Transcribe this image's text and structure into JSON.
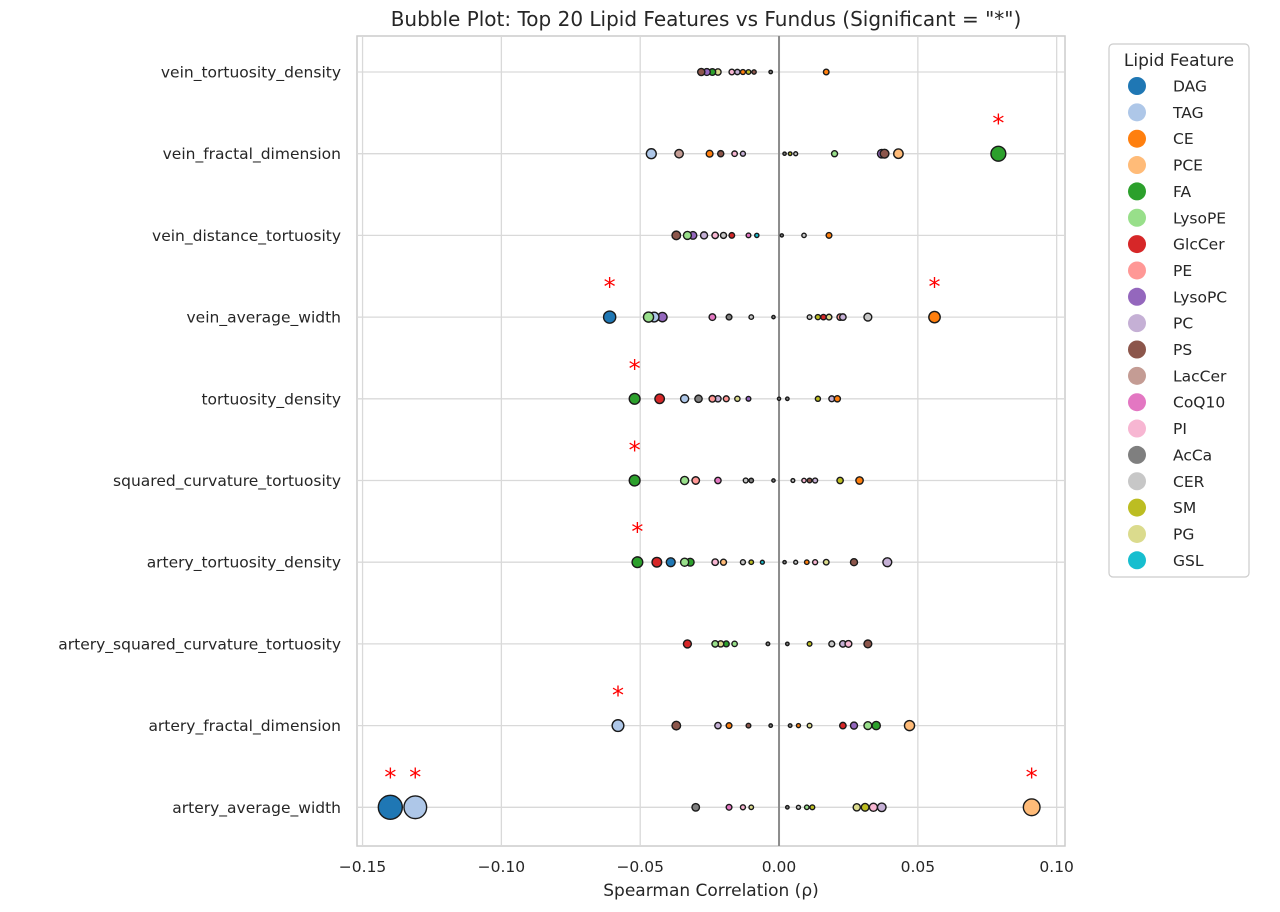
{
  "chart_data": {
    "type": "scatter",
    "title": "Bubble Plot: Top 20 Lipid Features vs Fundus (Significant = \"*\")",
    "xlabel": "Spearman Correlation (ρ)",
    "ylabel": "",
    "xlim": [
      -0.152,
      0.103
    ],
    "xticks": [
      -0.15,
      -0.1,
      -0.05,
      0.0,
      0.05,
      0.1
    ],
    "xtick_labels": [
      "−0.15",
      "−0.10",
      "−0.05",
      "0.00",
      "0.05",
      "0.10"
    ],
    "categories": [
      "vein_tortuosity_density",
      "vein_fractal_dimension",
      "vein_distance_tortuosity",
      "vein_average_width",
      "tortuosity_density",
      "squared_curvature_tortuosity",
      "artery_tortuosity_density",
      "artery_squared_curvature_tortuosity",
      "artery_fractal_dimension",
      "artery_average_width"
    ],
    "significance_marker": "*",
    "grid": true,
    "zero_line": true,
    "legend": {
      "title": "Lipid Feature",
      "placement": "outside-right",
      "items": [
        {
          "name": "DAG",
          "color": "#1f77b4"
        },
        {
          "name": "TAG",
          "color": "#aec7e8"
        },
        {
          "name": "CE",
          "color": "#ff7f0e"
        },
        {
          "name": "PCE",
          "color": "#ffbb78"
        },
        {
          "name": "FA",
          "color": "#2ca02c"
        },
        {
          "name": "LysoPE",
          "color": "#98df8a"
        },
        {
          "name": "GlcCer",
          "color": "#d62728"
        },
        {
          "name": "PE",
          "color": "#ff9896"
        },
        {
          "name": "LysoPC",
          "color": "#9467bd"
        },
        {
          "name": "PC",
          "color": "#c5b0d5"
        },
        {
          "name": "PS",
          "color": "#8c564b"
        },
        {
          "name": "LacCer",
          "color": "#c49c94"
        },
        {
          "name": "CoQ10",
          "color": "#e377c2"
        },
        {
          "name": "PI",
          "color": "#f7b6d2"
        },
        {
          "name": "AcCa",
          "color": "#7f7f7f"
        },
        {
          "name": "CER",
          "color": "#c7c7c7"
        },
        {
          "name": "SM",
          "color": "#bcbd22"
        },
        {
          "name": "PG",
          "color": "#dbdb8d"
        },
        {
          "name": "GSL",
          "color": "#17becf"
        }
      ]
    },
    "points": [
      {
        "row": "vein_tortuosity_density",
        "lipid": "PS",
        "rho": -0.028,
        "sig": false
      },
      {
        "row": "vein_tortuosity_density",
        "lipid": "LysoPC",
        "rho": -0.026,
        "sig": false
      },
      {
        "row": "vein_tortuosity_density",
        "lipid": "FA",
        "rho": -0.024,
        "sig": false
      },
      {
        "row": "vein_tortuosity_density",
        "lipid": "PG",
        "rho": -0.022,
        "sig": false
      },
      {
        "row": "vein_tortuosity_density",
        "lipid": "PI",
        "rho": -0.017,
        "sig": false
      },
      {
        "row": "vein_tortuosity_density",
        "lipid": "PC",
        "rho": -0.015,
        "sig": false
      },
      {
        "row": "vein_tortuosity_density",
        "lipid": "CE",
        "rho": -0.013,
        "sig": false
      },
      {
        "row": "vein_tortuosity_density",
        "lipid": "SM",
        "rho": -0.011,
        "sig": false
      },
      {
        "row": "vein_tortuosity_density",
        "lipid": "PS",
        "rho": -0.009,
        "sig": false
      },
      {
        "row": "vein_tortuosity_density",
        "lipid": "AcCa",
        "rho": -0.003,
        "sig": false
      },
      {
        "row": "vein_tortuosity_density",
        "lipid": "CE",
        "rho": 0.017,
        "sig": false
      },
      {
        "row": "vein_fractal_dimension",
        "lipid": "TAG",
        "rho": -0.046,
        "sig": false
      },
      {
        "row": "vein_fractal_dimension",
        "lipid": "LacCer",
        "rho": -0.036,
        "sig": false
      },
      {
        "row": "vein_fractal_dimension",
        "lipid": "CE",
        "rho": -0.025,
        "sig": false
      },
      {
        "row": "vein_fractal_dimension",
        "lipid": "PS",
        "rho": -0.021,
        "sig": false
      },
      {
        "row": "vein_fractal_dimension",
        "lipid": "PI",
        "rho": -0.016,
        "sig": false
      },
      {
        "row": "vein_fractal_dimension",
        "lipid": "PC",
        "rho": -0.013,
        "sig": false
      },
      {
        "row": "vein_fractal_dimension",
        "lipid": "AcCa",
        "rho": 0.002,
        "sig": false
      },
      {
        "row": "vein_fractal_dimension",
        "lipid": "SM",
        "rho": 0.004,
        "sig": false
      },
      {
        "row": "vein_fractal_dimension",
        "lipid": "CER",
        "rho": 0.006,
        "sig": false
      },
      {
        "row": "vein_fractal_dimension",
        "lipid": "LysoPE",
        "rho": 0.02,
        "sig": false
      },
      {
        "row": "vein_fractal_dimension",
        "lipid": "LysoPC",
        "rho": 0.037,
        "sig": false
      },
      {
        "row": "vein_fractal_dimension",
        "lipid": "PS",
        "rho": 0.038,
        "sig": false
      },
      {
        "row": "vein_fractal_dimension",
        "lipid": "PCE",
        "rho": 0.043,
        "sig": false
      },
      {
        "row": "vein_fractal_dimension",
        "lipid": "FA",
        "rho": 0.079,
        "sig": true
      },
      {
        "row": "vein_distance_tortuosity",
        "lipid": "PS",
        "rho": -0.037,
        "sig": false
      },
      {
        "row": "vein_distance_tortuosity",
        "lipid": "LysoPE",
        "rho": -0.033,
        "sig": false
      },
      {
        "row": "vein_distance_tortuosity",
        "lipid": "LysoPC",
        "rho": -0.031,
        "sig": false
      },
      {
        "row": "vein_distance_tortuosity",
        "lipid": "PC",
        "rho": -0.027,
        "sig": false
      },
      {
        "row": "vein_distance_tortuosity",
        "lipid": "PI",
        "rho": -0.023,
        "sig": false
      },
      {
        "row": "vein_distance_tortuosity",
        "lipid": "CER",
        "rho": -0.02,
        "sig": false
      },
      {
        "row": "vein_distance_tortuosity",
        "lipid": "GlcCer",
        "rho": -0.017,
        "sig": false
      },
      {
        "row": "vein_distance_tortuosity",
        "lipid": "CoQ10",
        "rho": -0.011,
        "sig": false
      },
      {
        "row": "vein_distance_tortuosity",
        "lipid": "GSL",
        "rho": -0.008,
        "sig": false
      },
      {
        "row": "vein_distance_tortuosity",
        "lipid": "AcCa",
        "rho": 0.001,
        "sig": false
      },
      {
        "row": "vein_distance_tortuosity",
        "lipid": "CER",
        "rho": 0.009,
        "sig": false
      },
      {
        "row": "vein_distance_tortuosity",
        "lipid": "CE",
        "rho": 0.018,
        "sig": false
      },
      {
        "row": "vein_average_width",
        "lipid": "DAG",
        "rho": -0.061,
        "sig": true
      },
      {
        "row": "vein_average_width",
        "lipid": "LysoPE",
        "rho": -0.047,
        "sig": false
      },
      {
        "row": "vein_average_width",
        "lipid": "TAG",
        "rho": -0.045,
        "sig": false
      },
      {
        "row": "vein_average_width",
        "lipid": "LysoPC",
        "rho": -0.042,
        "sig": false
      },
      {
        "row": "vein_average_width",
        "lipid": "CoQ10",
        "rho": -0.024,
        "sig": false
      },
      {
        "row": "vein_average_width",
        "lipid": "AcCa",
        "rho": -0.018,
        "sig": false
      },
      {
        "row": "vein_average_width",
        "lipid": "CER",
        "rho": -0.01,
        "sig": false
      },
      {
        "row": "vein_average_width",
        "lipid": "AcCa",
        "rho": -0.002,
        "sig": false
      },
      {
        "row": "vein_average_width",
        "lipid": "CER",
        "rho": 0.011,
        "sig": false
      },
      {
        "row": "vein_average_width",
        "lipid": "SM",
        "rho": 0.014,
        "sig": false
      },
      {
        "row": "vein_average_width",
        "lipid": "GlcCer",
        "rho": 0.016,
        "sig": false
      },
      {
        "row": "vein_average_width",
        "lipid": "PG",
        "rho": 0.018,
        "sig": false
      },
      {
        "row": "vein_average_width",
        "lipid": "PE",
        "rho": 0.022,
        "sig": false
      },
      {
        "row": "vein_average_width",
        "lipid": "PC",
        "rho": 0.023,
        "sig": false
      },
      {
        "row": "vein_average_width",
        "lipid": "CER",
        "rho": 0.032,
        "sig": false
      },
      {
        "row": "vein_average_width",
        "lipid": "CE",
        "rho": 0.056,
        "sig": true
      },
      {
        "row": "tortuosity_density",
        "lipid": "FA",
        "rho": -0.052,
        "sig": true
      },
      {
        "row": "tortuosity_density",
        "lipid": "GlcCer",
        "rho": -0.043,
        "sig": false
      },
      {
        "row": "tortuosity_density",
        "lipid": "TAG",
        "rho": -0.034,
        "sig": false
      },
      {
        "row": "tortuosity_density",
        "lipid": "AcCa",
        "rho": -0.029,
        "sig": false
      },
      {
        "row": "tortuosity_density",
        "lipid": "PE",
        "rho": -0.024,
        "sig": false
      },
      {
        "row": "tortuosity_density",
        "lipid": "PC",
        "rho": -0.022,
        "sig": false
      },
      {
        "row": "tortuosity_density",
        "lipid": "PE",
        "rho": -0.019,
        "sig": false
      },
      {
        "row": "tortuosity_density",
        "lipid": "PG",
        "rho": -0.015,
        "sig": false
      },
      {
        "row": "tortuosity_density",
        "lipid": "LysoPC",
        "rho": -0.011,
        "sig": false
      },
      {
        "row": "tortuosity_density",
        "lipid": "AcCa",
        "rho": 0.0,
        "sig": false
      },
      {
        "row": "tortuosity_density",
        "lipid": "AcCa",
        "rho": 0.003,
        "sig": false
      },
      {
        "row": "tortuosity_density",
        "lipid": "SM",
        "rho": 0.014,
        "sig": false
      },
      {
        "row": "tortuosity_density",
        "lipid": "PC",
        "rho": 0.019,
        "sig": false
      },
      {
        "row": "tortuosity_density",
        "lipid": "CE",
        "rho": 0.021,
        "sig": false
      },
      {
        "row": "squared_curvature_tortuosity",
        "lipid": "FA",
        "rho": -0.052,
        "sig": true
      },
      {
        "row": "squared_curvature_tortuosity",
        "lipid": "LysoPE",
        "rho": -0.034,
        "sig": false
      },
      {
        "row": "squared_curvature_tortuosity",
        "lipid": "PE",
        "rho": -0.03,
        "sig": false
      },
      {
        "row": "squared_curvature_tortuosity",
        "lipid": "CoQ10",
        "rho": -0.022,
        "sig": false
      },
      {
        "row": "squared_curvature_tortuosity",
        "lipid": "CER",
        "rho": -0.012,
        "sig": false
      },
      {
        "row": "squared_curvature_tortuosity",
        "lipid": "AcCa",
        "rho": -0.01,
        "sig": false
      },
      {
        "row": "squared_curvature_tortuosity",
        "lipid": "AcCa",
        "rho": -0.002,
        "sig": false
      },
      {
        "row": "squared_curvature_tortuosity",
        "lipid": "CER",
        "rho": 0.005,
        "sig": false
      },
      {
        "row": "squared_curvature_tortuosity",
        "lipid": "PI",
        "rho": 0.009,
        "sig": false
      },
      {
        "row": "squared_curvature_tortuosity",
        "lipid": "PS",
        "rho": 0.011,
        "sig": false
      },
      {
        "row": "squared_curvature_tortuosity",
        "lipid": "PC",
        "rho": 0.013,
        "sig": false
      },
      {
        "row": "squared_curvature_tortuosity",
        "lipid": "SM",
        "rho": 0.022,
        "sig": false
      },
      {
        "row": "squared_curvature_tortuosity",
        "lipid": "CE",
        "rho": 0.029,
        "sig": false
      },
      {
        "row": "artery_tortuosity_density",
        "lipid": "FA",
        "rho": -0.051,
        "sig": true
      },
      {
        "row": "artery_tortuosity_density",
        "lipid": "GlcCer",
        "rho": -0.044,
        "sig": false
      },
      {
        "row": "artery_tortuosity_density",
        "lipid": "DAG",
        "rho": -0.039,
        "sig": false
      },
      {
        "row": "artery_tortuosity_density",
        "lipid": "LysoPE",
        "rho": -0.034,
        "sig": false
      },
      {
        "row": "artery_tortuosity_density",
        "lipid": "FA",
        "rho": -0.032,
        "sig": false
      },
      {
        "row": "artery_tortuosity_density",
        "lipid": "PI",
        "rho": -0.023,
        "sig": false
      },
      {
        "row": "artery_tortuosity_density",
        "lipid": "PCE",
        "rho": -0.02,
        "sig": false
      },
      {
        "row": "artery_tortuosity_density",
        "lipid": "CER",
        "rho": -0.013,
        "sig": false
      },
      {
        "row": "artery_tortuosity_density",
        "lipid": "SM",
        "rho": -0.01,
        "sig": false
      },
      {
        "row": "artery_tortuosity_density",
        "lipid": "GSL",
        "rho": -0.006,
        "sig": false
      },
      {
        "row": "artery_tortuosity_density",
        "lipid": "AcCa",
        "rho": 0.002,
        "sig": false
      },
      {
        "row": "artery_tortuosity_density",
        "lipid": "CER",
        "rho": 0.006,
        "sig": false
      },
      {
        "row": "artery_tortuosity_density",
        "lipid": "CE",
        "rho": 0.01,
        "sig": false
      },
      {
        "row": "artery_tortuosity_density",
        "lipid": "PI",
        "rho": 0.013,
        "sig": false
      },
      {
        "row": "artery_tortuosity_density",
        "lipid": "PG",
        "rho": 0.017,
        "sig": false
      },
      {
        "row": "artery_tortuosity_density",
        "lipid": "PS",
        "rho": 0.027,
        "sig": false
      },
      {
        "row": "artery_tortuosity_density",
        "lipid": "PC",
        "rho": 0.039,
        "sig": false
      },
      {
        "row": "artery_squared_curvature_tortuosity",
        "lipid": "GlcCer",
        "rho": -0.033,
        "sig": false
      },
      {
        "row": "artery_squared_curvature_tortuosity",
        "lipid": "LysoPE",
        "rho": -0.023,
        "sig": false
      },
      {
        "row": "artery_squared_curvature_tortuosity",
        "lipid": "PG",
        "rho": -0.021,
        "sig": false
      },
      {
        "row": "artery_squared_curvature_tortuosity",
        "lipid": "FA",
        "rho": -0.019,
        "sig": false
      },
      {
        "row": "artery_squared_curvature_tortuosity",
        "lipid": "LysoPE",
        "rho": -0.016,
        "sig": false
      },
      {
        "row": "artery_squared_curvature_tortuosity",
        "lipid": "AcCa",
        "rho": -0.004,
        "sig": false
      },
      {
        "row": "artery_squared_curvature_tortuosity",
        "lipid": "AcCa",
        "rho": 0.003,
        "sig": false
      },
      {
        "row": "artery_squared_curvature_tortuosity",
        "lipid": "SM",
        "rho": 0.011,
        "sig": false
      },
      {
        "row": "artery_squared_curvature_tortuosity",
        "lipid": "CER",
        "rho": 0.019,
        "sig": false
      },
      {
        "row": "artery_squared_curvature_tortuosity",
        "lipid": "PC",
        "rho": 0.023,
        "sig": false
      },
      {
        "row": "artery_squared_curvature_tortuosity",
        "lipid": "PI",
        "rho": 0.025,
        "sig": false
      },
      {
        "row": "artery_squared_curvature_tortuosity",
        "lipid": "PS",
        "rho": 0.032,
        "sig": false
      },
      {
        "row": "artery_fractal_dimension",
        "lipid": "TAG",
        "rho": -0.058,
        "sig": true
      },
      {
        "row": "artery_fractal_dimension",
        "lipid": "PS",
        "rho": -0.037,
        "sig": false
      },
      {
        "row": "artery_fractal_dimension",
        "lipid": "PC",
        "rho": -0.022,
        "sig": false
      },
      {
        "row": "artery_fractal_dimension",
        "lipid": "CE",
        "rho": -0.018,
        "sig": false
      },
      {
        "row": "artery_fractal_dimension",
        "lipid": "PS",
        "rho": -0.011,
        "sig": false
      },
      {
        "row": "artery_fractal_dimension",
        "lipid": "AcCa",
        "rho": -0.003,
        "sig": false
      },
      {
        "row": "artery_fractal_dimension",
        "lipid": "AcCa",
        "rho": 0.004,
        "sig": false
      },
      {
        "row": "artery_fractal_dimension",
        "lipid": "CE",
        "rho": 0.007,
        "sig": false
      },
      {
        "row": "artery_fractal_dimension",
        "lipid": "PG",
        "rho": 0.011,
        "sig": false
      },
      {
        "row": "artery_fractal_dimension",
        "lipid": "GlcCer",
        "rho": 0.023,
        "sig": false
      },
      {
        "row": "artery_fractal_dimension",
        "lipid": "LysoPC",
        "rho": 0.027,
        "sig": false
      },
      {
        "row": "artery_fractal_dimension",
        "lipid": "LysoPE",
        "rho": 0.032,
        "sig": false
      },
      {
        "row": "artery_fractal_dimension",
        "lipid": "FA",
        "rho": 0.035,
        "sig": false
      },
      {
        "row": "artery_fractal_dimension",
        "lipid": "PCE",
        "rho": 0.047,
        "sig": false
      },
      {
        "row": "artery_average_width",
        "lipid": "DAG",
        "rho": -0.14,
        "sig": true
      },
      {
        "row": "artery_average_width",
        "lipid": "TAG",
        "rho": -0.131,
        "sig": true
      },
      {
        "row": "artery_average_width",
        "lipid": "AcCa",
        "rho": -0.03,
        "sig": false
      },
      {
        "row": "artery_average_width",
        "lipid": "CoQ10",
        "rho": -0.018,
        "sig": false
      },
      {
        "row": "artery_average_width",
        "lipid": "PI",
        "rho": -0.013,
        "sig": false
      },
      {
        "row": "artery_average_width",
        "lipid": "PG",
        "rho": -0.01,
        "sig": false
      },
      {
        "row": "artery_average_width",
        "lipid": "AcCa",
        "rho": 0.003,
        "sig": false
      },
      {
        "row": "artery_average_width",
        "lipid": "CER",
        "rho": 0.007,
        "sig": false
      },
      {
        "row": "artery_average_width",
        "lipid": "LysoPE",
        "rho": 0.01,
        "sig": false
      },
      {
        "row": "artery_average_width",
        "lipid": "SM",
        "rho": 0.012,
        "sig": false
      },
      {
        "row": "artery_average_width",
        "lipid": "PG",
        "rho": 0.028,
        "sig": false
      },
      {
        "row": "artery_average_width",
        "lipid": "SM",
        "rho": 0.031,
        "sig": false
      },
      {
        "row": "artery_average_width",
        "lipid": "PI",
        "rho": 0.034,
        "sig": false
      },
      {
        "row": "artery_average_width",
        "lipid": "PC",
        "rho": 0.037,
        "sig": false
      },
      {
        "row": "artery_average_width",
        "lipid": "PCE",
        "rho": 0.091,
        "sig": true
      }
    ]
  }
}
